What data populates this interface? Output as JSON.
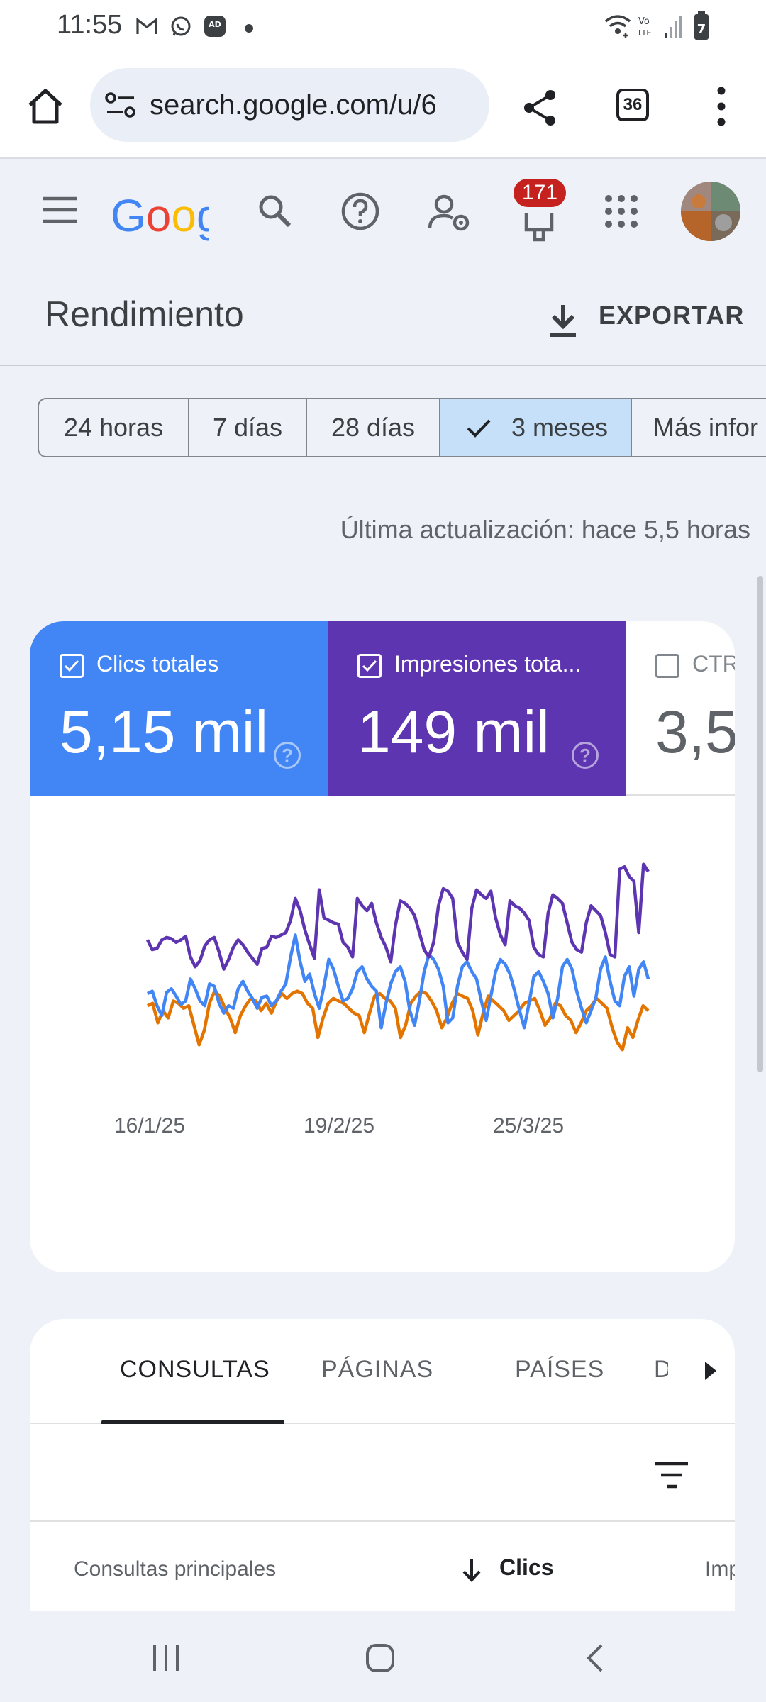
{
  "status_bar": {
    "time": "11:55",
    "icons": [
      "gmail-icon",
      "whatsapp-business-icon",
      "adblocker-icon",
      "notification-dot",
      "wifi-calling-icon",
      "volte-icon",
      "signal-icon",
      "battery-icon"
    ]
  },
  "browser": {
    "url": "search.google.com/u/6",
    "tab_count": "36",
    "icons": [
      "home-icon",
      "site-settings-icon",
      "share-icon",
      "tabs-icon",
      "more-vert-icon"
    ]
  },
  "app_bar": {
    "logo_text": "Goog",
    "notification_count": "171",
    "icons": [
      "menu-icon",
      "search-icon",
      "help-icon",
      "user-settings-icon",
      "notifications-icon",
      "apps-icon",
      "avatar"
    ]
  },
  "header": {
    "title": "Rendimiento",
    "export_label": "EXPORTAR"
  },
  "date_chips": [
    {
      "label": "24 horas",
      "selected": false
    },
    {
      "label": "7 días",
      "selected": false
    },
    {
      "label": "28 días",
      "selected": false
    },
    {
      "label": "3 meses",
      "selected": true
    },
    {
      "label": "Más infor",
      "selected": false
    }
  ],
  "last_update": "Última actualización: hace 5,5 horas",
  "metrics": {
    "clicks": {
      "label": "Clics totales",
      "value": "5,15 mil",
      "checked": true,
      "color": "#4285f4"
    },
    "impressions": {
      "label": "Impresiones tota...",
      "value": "149 mil",
      "checked": true,
      "color": "#5e35b1"
    },
    "ctr": {
      "label": "CTR",
      "value": "3,5",
      "checked": false
    }
  },
  "chart_data": {
    "type": "line",
    "x_tick_labels": [
      "16/1/25",
      "19/2/25",
      "25/3/25"
    ],
    "series": [
      {
        "color": "#5e35b1",
        "values": [
          62,
          54,
          55,
          62,
          64,
          63,
          60,
          62,
          65,
          48,
          40,
          45,
          57,
          62,
          64,
          52,
          38,
          46,
          56,
          62,
          58,
          52,
          47,
          42,
          55,
          56,
          65,
          64,
          66,
          68,
          78,
          96,
          86,
          70,
          58,
          47,
          103,
          80,
          78,
          76,
          75,
          60,
          56,
          48,
          96,
          90,
          86,
          92,
          76,
          64,
          56,
          44,
          74,
          94,
          92,
          88,
          82,
          68,
          54,
          48,
          60,
          90,
          104,
          102,
          96,
          60,
          52,
          46,
          88,
          103,
          99,
          96,
          102,
          80,
          66,
          58,
          94,
          90,
          88,
          84,
          78,
          56,
          50,
          48,
          84,
          99,
          96,
          92,
          76,
          60,
          54,
          52,
          76,
          90,
          86,
          82,
          68,
          50,
          48,
          120,
          122,
          114,
          110,
          68,
          124,
          118
        ]
      },
      {
        "color": "#4285f4",
        "values": [
          18,
          20,
          8,
          0,
          19,
          22,
          16,
          9,
          12,
          30,
          22,
          12,
          8,
          26,
          24,
          10,
          2,
          8,
          6,
          22,
          28,
          20,
          14,
          6,
          15,
          16,
          8,
          12,
          20,
          26,
          48,
          66,
          44,
          28,
          34,
          18,
          6,
          24,
          46,
          38,
          24,
          12,
          14,
          22,
          36,
          40,
          30,
          24,
          20,
          -10,
          10,
          26,
          36,
          40,
          28,
          4,
          -8,
          12,
          36,
          50,
          46,
          38,
          24,
          -6,
          -2,
          24,
          40,
          44,
          36,
          30,
          12,
          -4,
          16,
          36,
          46,
          42,
          34,
          20,
          4,
          -10,
          10,
          32,
          36,
          28,
          18,
          -2,
          14,
          40,
          46,
          38,
          20,
          6,
          -6,
          4,
          14,
          38,
          48,
          28,
          12,
          8,
          32,
          40,
          16,
          38,
          44,
          30
        ]
      },
      {
        "color": "#e37400",
        "values": [
          8,
          10,
          -6,
          4,
          -2,
          12,
          10,
          6,
          8,
          -8,
          -24,
          -12,
          10,
          20,
          16,
          6,
          -2,
          -14,
          0,
          8,
          14,
          12,
          4,
          10,
          2,
          12,
          18,
          14,
          18,
          20,
          18,
          10,
          6,
          -18,
          -2,
          10,
          14,
          12,
          10,
          6,
          2,
          0,
          -14,
          2,
          16,
          18,
          14,
          12,
          6,
          -18,
          -8,
          10,
          16,
          20,
          18,
          12,
          4,
          -10,
          -2,
          10,
          18,
          16,
          14,
          4,
          -16,
          2,
          16,
          12,
          8,
          4,
          -4,
          0,
          4,
          10,
          12,
          14,
          4,
          -8,
          -2,
          10,
          8,
          0,
          -4,
          -14,
          -6,
          4,
          8,
          14,
          10,
          6,
          -10,
          -22,
          -28,
          -10,
          -18,
          -4,
          8,
          4
        ]
      }
    ]
  }
}
